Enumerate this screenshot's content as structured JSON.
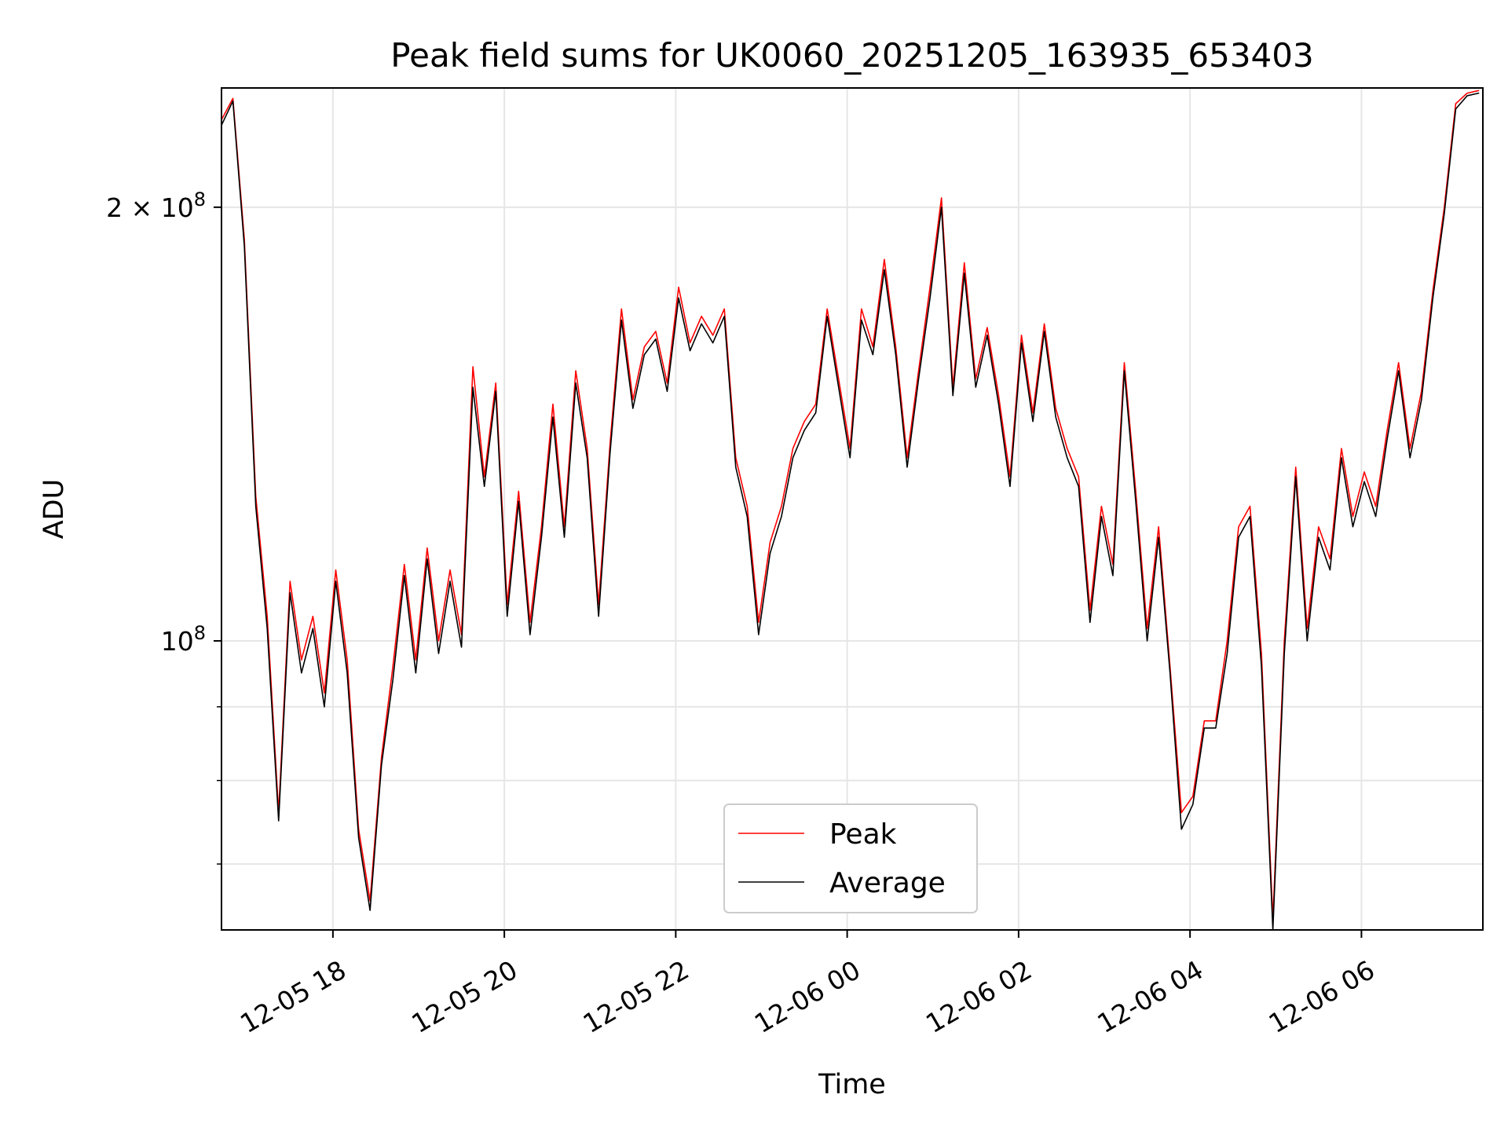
{
  "chart_data": {
    "type": "line",
    "title": "Peak field sums for UK0060_20251205_163935_653403",
    "xlabel": "Time",
    "ylabel": "ADU",
    "yscale": "log",
    "grid": true,
    "legend_position": "lower-center",
    "xlim": [
      "2025-12-05 16:42",
      "2025-12-06 07:25"
    ],
    "ylim": [
      63000000,
      242000000
    ],
    "x_ticks": [
      {
        "value": "2025-12-05 18:00",
        "label": "12-05 18"
      },
      {
        "value": "2025-12-05 20:00",
        "label": "12-05 20"
      },
      {
        "value": "2025-12-05 22:00",
        "label": "12-05 22"
      },
      {
        "value": "2025-12-06 00:00",
        "label": "12-06 00"
      },
      {
        "value": "2025-12-06 02:00",
        "label": "12-06 02"
      },
      {
        "value": "2025-12-06 04:00",
        "label": "12-06 04"
      },
      {
        "value": "2025-12-06 06:00",
        "label": "12-06 06"
      }
    ],
    "y_major_ticks": [
      {
        "value": 100000000,
        "base": "10",
        "exp": "8",
        "mult": ""
      },
      {
        "value": 200000000,
        "base": "2 × 10",
        "exp": "8",
        "mult": ""
      }
    ],
    "y_minor_ticks": [
      70000000,
      80000000,
      90000000
    ],
    "series": [
      {
        "name": "Peak",
        "color": "#ff0000",
        "x": [
          "2025-12-05 16:42",
          "2025-12-05 16:50",
          "2025-12-05 16:58",
          "2025-12-05 17:06",
          "2025-12-05 17:14",
          "2025-12-05 17:22",
          "2025-12-05 17:30",
          "2025-12-05 17:38",
          "2025-12-05 17:46",
          "2025-12-05 17:54",
          "2025-12-05 18:02",
          "2025-12-05 18:10",
          "2025-12-05 18:18",
          "2025-12-05 18:26",
          "2025-12-05 18:34",
          "2025-12-05 18:42",
          "2025-12-05 18:50",
          "2025-12-05 18:58",
          "2025-12-05 19:06",
          "2025-12-05 19:14",
          "2025-12-05 19:22",
          "2025-12-05 19:30",
          "2025-12-05 19:38",
          "2025-12-05 19:46",
          "2025-12-05 19:54",
          "2025-12-05 20:02",
          "2025-12-05 20:10",
          "2025-12-05 20:18",
          "2025-12-05 20:26",
          "2025-12-05 20:34",
          "2025-12-05 20:42",
          "2025-12-05 20:50",
          "2025-12-05 20:58",
          "2025-12-05 21:06",
          "2025-12-05 21:14",
          "2025-12-05 21:22",
          "2025-12-05 21:30",
          "2025-12-05 21:38",
          "2025-12-05 21:46",
          "2025-12-05 21:54",
          "2025-12-05 22:02",
          "2025-12-05 22:10",
          "2025-12-05 22:18",
          "2025-12-05 22:26",
          "2025-12-05 22:34",
          "2025-12-05 22:42",
          "2025-12-05 22:50",
          "2025-12-05 22:58",
          "2025-12-05 23:06",
          "2025-12-05 23:14",
          "2025-12-05 23:22",
          "2025-12-05 23:30",
          "2025-12-05 23:38",
          "2025-12-05 23:46",
          "2025-12-05 23:54",
          "2025-12-06 00:02",
          "2025-12-06 00:10",
          "2025-12-06 00:18",
          "2025-12-06 00:26",
          "2025-12-06 00:34",
          "2025-12-06 00:42",
          "2025-12-06 00:50",
          "2025-12-06 00:58",
          "2025-12-06 01:06",
          "2025-12-06 01:14",
          "2025-12-06 01:22",
          "2025-12-06 01:30",
          "2025-12-06 01:38",
          "2025-12-06 01:46",
          "2025-12-06 01:54",
          "2025-12-06 02:02",
          "2025-12-06 02:10",
          "2025-12-06 02:18",
          "2025-12-06 02:26",
          "2025-12-06 02:34",
          "2025-12-06 02:42",
          "2025-12-06 02:50",
          "2025-12-06 02:58",
          "2025-12-06 03:06",
          "2025-12-06 03:14",
          "2025-12-06 03:22",
          "2025-12-06 03:30",
          "2025-12-06 03:38",
          "2025-12-06 03:46",
          "2025-12-06 03:54",
          "2025-12-06 04:02",
          "2025-12-06 04:10",
          "2025-12-06 04:18",
          "2025-12-06 04:26",
          "2025-12-06 04:34",
          "2025-12-06 04:42",
          "2025-12-06 04:50",
          "2025-12-06 04:58",
          "2025-12-06 05:06",
          "2025-12-06 05:14",
          "2025-12-06 05:22",
          "2025-12-06 05:30",
          "2025-12-06 05:38",
          "2025-12-06 05:46",
          "2025-12-06 05:54",
          "2025-12-06 06:02",
          "2025-12-06 06:10",
          "2025-12-06 06:18",
          "2025-12-06 06:26",
          "2025-12-06 06:34",
          "2025-12-06 06:42",
          "2025-12-06 06:50",
          "2025-12-06 06:58",
          "2025-12-06 07:06",
          "2025-12-06 07:14",
          "2025-12-06 07:22"
        ],
        "values": [
          230000000,
          238000000,
          190000000,
          126000000,
          104000000,
          76000000,
          110000000,
          97000000,
          104000000,
          92000000,
          112000000,
          97000000,
          74000000,
          66000000,
          83000000,
          96000000,
          113000000,
          97000000,
          116000000,
          100000000,
          112000000,
          101000000,
          155000000,
          130000000,
          151000000,
          106000000,
          127000000,
          103000000,
          120000000,
          146000000,
          120000000,
          154000000,
          136000000,
          106000000,
          137000000,
          170000000,
          147000000,
          160000000,
          164000000,
          151000000,
          176000000,
          161000000,
          168000000,
          163000000,
          170000000,
          134000000,
          124000000,
          103000000,
          117000000,
          124000000,
          136000000,
          142000000,
          146000000,
          170000000,
          152000000,
          136000000,
          170000000,
          160000000,
          184000000,
          160000000,
          134000000,
          154000000,
          176000000,
          203000000,
          150000000,
          183000000,
          152000000,
          165000000,
          148000000,
          130000000,
          163000000,
          144000000,
          166000000,
          145000000,
          136000000,
          130000000,
          105000000,
          124000000,
          113000000,
          156000000,
          127000000,
          102000000,
          120000000,
          96000000,
          76000000,
          78000000,
          88000000,
          88000000,
          100000000,
          120000000,
          124000000,
          98000000,
          64000000,
          100000000,
          132000000,
          102000000,
          120000000,
          114000000,
          136000000,
          122000000,
          131000000,
          124000000,
          140000000,
          156000000,
          136000000,
          149000000,
          175000000,
          200000000,
          236000000,
          240000000,
          241000000
        ]
      },
      {
        "name": "Average",
        "color": "#000000",
        "x": [
          "2025-12-05 16:42",
          "2025-12-05 16:50",
          "2025-12-05 16:58",
          "2025-12-05 17:06",
          "2025-12-05 17:14",
          "2025-12-05 17:22",
          "2025-12-05 17:30",
          "2025-12-05 17:38",
          "2025-12-05 17:46",
          "2025-12-05 17:54",
          "2025-12-05 18:02",
          "2025-12-05 18:10",
          "2025-12-05 18:18",
          "2025-12-05 18:26",
          "2025-12-05 18:34",
          "2025-12-05 18:42",
          "2025-12-05 18:50",
          "2025-12-05 18:58",
          "2025-12-05 19:06",
          "2025-12-05 19:14",
          "2025-12-05 19:22",
          "2025-12-05 19:30",
          "2025-12-05 19:38",
          "2025-12-05 19:46",
          "2025-12-05 19:54",
          "2025-12-05 20:02",
          "2025-12-05 20:10",
          "2025-12-05 20:18",
          "2025-12-05 20:26",
          "2025-12-05 20:34",
          "2025-12-05 20:42",
          "2025-12-05 20:50",
          "2025-12-05 20:58",
          "2025-12-05 21:06",
          "2025-12-05 21:14",
          "2025-12-05 21:22",
          "2025-12-05 21:30",
          "2025-12-05 21:38",
          "2025-12-05 21:46",
          "2025-12-05 21:54",
          "2025-12-05 22:02",
          "2025-12-05 22:10",
          "2025-12-05 22:18",
          "2025-12-05 22:26",
          "2025-12-05 22:34",
          "2025-12-05 22:42",
          "2025-12-05 22:50",
          "2025-12-05 22:58",
          "2025-12-05 23:06",
          "2025-12-05 23:14",
          "2025-12-05 23:22",
          "2025-12-05 23:30",
          "2025-12-05 23:38",
          "2025-12-05 23:46",
          "2025-12-05 23:54",
          "2025-12-06 00:02",
          "2025-12-06 00:10",
          "2025-12-06 00:18",
          "2025-12-06 00:26",
          "2025-12-06 00:34",
          "2025-12-06 00:42",
          "2025-12-06 00:50",
          "2025-12-06 00:58",
          "2025-12-06 01:06",
          "2025-12-06 01:14",
          "2025-12-06 01:22",
          "2025-12-06 01:30",
          "2025-12-06 01:38",
          "2025-12-06 01:46",
          "2025-12-06 01:54",
          "2025-12-06 02:02",
          "2025-12-06 02:10",
          "2025-12-06 02:18",
          "2025-12-06 02:26",
          "2025-12-06 02:34",
          "2025-12-06 02:42",
          "2025-12-06 02:50",
          "2025-12-06 02:58",
          "2025-12-06 03:06",
          "2025-12-06 03:14",
          "2025-12-06 03:22",
          "2025-12-06 03:30",
          "2025-12-06 03:38",
          "2025-12-06 03:46",
          "2025-12-06 03:54",
          "2025-12-06 04:02",
          "2025-12-06 04:10",
          "2025-12-06 04:18",
          "2025-12-06 04:26",
          "2025-12-06 04:34",
          "2025-12-06 04:42",
          "2025-12-06 04:50",
          "2025-12-06 04:58",
          "2025-12-06 05:06",
          "2025-12-06 05:14",
          "2025-12-06 05:22",
          "2025-12-06 05:30",
          "2025-12-06 05:38",
          "2025-12-06 05:46",
          "2025-12-06 05:54",
          "2025-12-06 06:02",
          "2025-12-06 06:10",
          "2025-12-06 06:18",
          "2025-12-06 06:26",
          "2025-12-06 06:34",
          "2025-12-06 06:42",
          "2025-12-06 06:50",
          "2025-12-06 06:58",
          "2025-12-06 07:06",
          "2025-12-06 07:14",
          "2025-12-06 07:22"
        ],
        "values": [
          228000000,
          237000000,
          188000000,
          124000000,
          102000000,
          75000000,
          108000000,
          95000000,
          102000000,
          90000000,
          110000000,
          95000000,
          73000000,
          65000000,
          82000000,
          94000000,
          111000000,
          95000000,
          114000000,
          98000000,
          110000000,
          99000000,
          150000000,
          128000000,
          149000000,
          104000000,
          125000000,
          101000000,
          118000000,
          143000000,
          118000000,
          151000000,
          134000000,
          104000000,
          135000000,
          167000000,
          145000000,
          158000000,
          162000000,
          149000000,
          173000000,
          159000000,
          166000000,
          161000000,
          168000000,
          132000000,
          122000000,
          101000000,
          115000000,
          122000000,
          134000000,
          140000000,
          144000000,
          168000000,
          150000000,
          134000000,
          167000000,
          158000000,
          181000000,
          158000000,
          132000000,
          152000000,
          173000000,
          200000000,
          148000000,
          180000000,
          150000000,
          163000000,
          146000000,
          128000000,
          161000000,
          142000000,
          164000000,
          143000000,
          134000000,
          128000000,
          103000000,
          122000000,
          111000000,
          154000000,
          125000000,
          100000000,
          118000000,
          95000000,
          74000000,
          77000000,
          87000000,
          87000000,
          98000000,
          118000000,
          122000000,
          96000000,
          63000000,
          98000000,
          130000000,
          100000000,
          118000000,
          112000000,
          134000000,
          120000000,
          129000000,
          122000000,
          138000000,
          154000000,
          134000000,
          147000000,
          173000000,
          198000000,
          234000000,
          239000000,
          240000000
        ]
      }
    ]
  }
}
